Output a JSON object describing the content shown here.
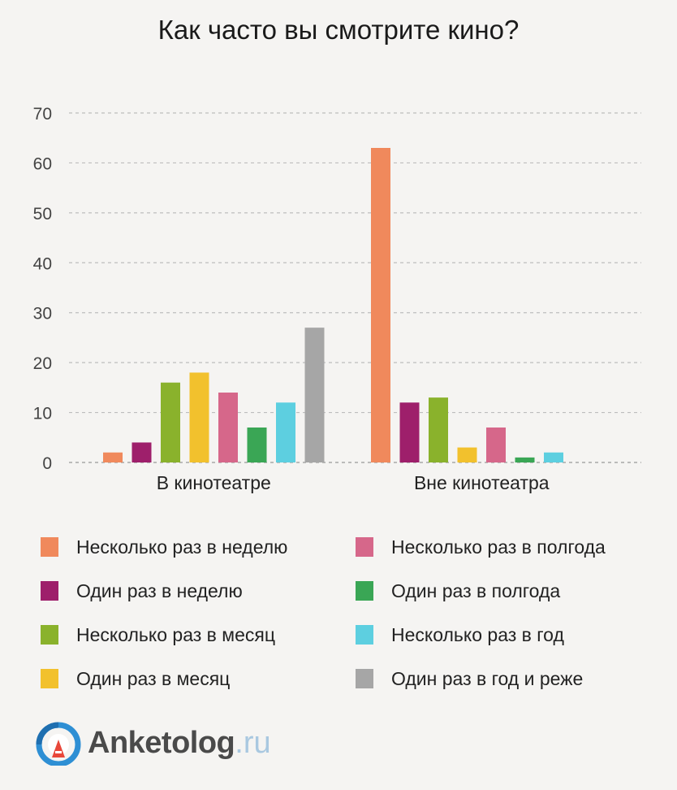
{
  "chart_data": {
    "type": "bar",
    "title": "Как часто вы смотрите кино?",
    "categories": [
      "В кинотеатре",
      "Вне кинотеатра"
    ],
    "ylim": [
      0,
      70
    ],
    "yticks": [
      0,
      10,
      20,
      30,
      40,
      50,
      60,
      70
    ],
    "grid": true,
    "legend_position": "bottom",
    "series": [
      {
        "name": "Несколько раз в неделю",
        "color": "#f0895c",
        "values": [
          2,
          63
        ]
      },
      {
        "name": "Один раз в неделю",
        "color": "#9e1f6b",
        "values": [
          4,
          12
        ]
      },
      {
        "name": "Несколько раз в месяц",
        "color": "#8ab22c",
        "values": [
          16,
          13
        ]
      },
      {
        "name": "Один раз в месяц",
        "color": "#f2c12d",
        "values": [
          18,
          3
        ]
      },
      {
        "name": "Несколько раз в полгода",
        "color": "#d6678a",
        "values": [
          14,
          7
        ]
      },
      {
        "name": "Один раз в полгода",
        "color": "#3aa655",
        "values": [
          7,
          1
        ]
      },
      {
        "name": "Несколько раз в год",
        "color": "#5dcfe0",
        "values": [
          12,
          2
        ]
      },
      {
        "name": "Один раз в год и реже",
        "color": "#a6a6a6",
        "values": [
          27,
          0
        ]
      }
    ]
  },
  "logo": {
    "main": "Anketolog",
    "tld": ".ru",
    "icon": "anketolog-logo-icon"
  }
}
